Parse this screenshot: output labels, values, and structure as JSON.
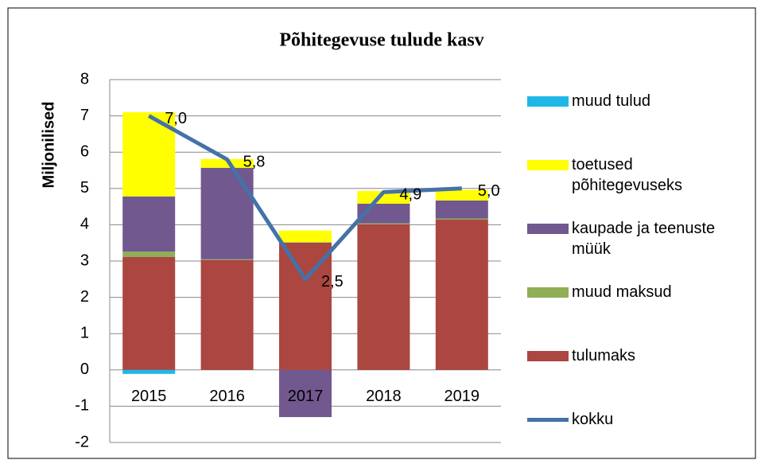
{
  "chart_data": {
    "type": "bar",
    "stacked": true,
    "title": "Põhitegevuse tulude kasv",
    "ylabel": "Miljonilised",
    "categories": [
      "2015",
      "2016",
      "2017",
      "2018",
      "2019"
    ],
    "ylim": [
      -2,
      8
    ],
    "yticks": [
      -2,
      -1,
      0,
      1,
      2,
      3,
      4,
      5,
      6,
      7,
      8
    ],
    "grid": true,
    "legend": "right",
    "series": [
      {
        "name": "tulumaks",
        "color": "#ab4641",
        "values": [
          3.11,
          3.03,
          3.51,
          4.01,
          4.14
        ]
      },
      {
        "name": "muud maksud",
        "color": "#8fae55",
        "values": [
          0.15,
          0.02,
          0.01,
          0.03,
          0.03
        ]
      },
      {
        "name": "kaupade ja teenuste müük",
        "color": "#71588f",
        "values": [
          1.52,
          2.52,
          -1.3,
          0.54,
          0.5
        ]
      },
      {
        "name": "toetused põhitegevuseks",
        "color": "#ffff00",
        "values": [
          2.32,
          0.24,
          0.32,
          0.35,
          0.29
        ]
      },
      {
        "name": "muud tulud",
        "color": "#1fb7e8",
        "values": [
          -0.11,
          0,
          0,
          0,
          0
        ]
      },
      {
        "name": "kokku",
        "type": "line",
        "color": "#4472a8",
        "values": [
          7.0,
          5.8,
          2.5,
          4.9,
          5.0
        ],
        "value_labels": [
          "7,0",
          "5,8",
          "2,5",
          "4,9",
          "5,0"
        ]
      }
    ]
  }
}
